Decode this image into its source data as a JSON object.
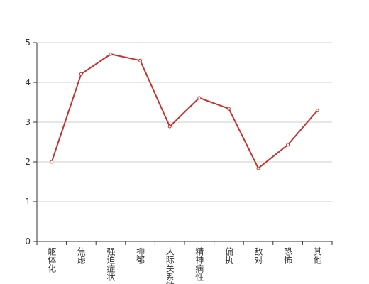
{
  "chart_data": {
    "type": "line",
    "categories": [
      "躯体化",
      "焦虑",
      "强迫症状",
      "抑郁",
      "人际关系敏感",
      "精神病性",
      "偏执",
      "敌对",
      "恐怖",
      "其他"
    ],
    "values": [
      2.0,
      4.21,
      4.71,
      4.55,
      2.89,
      3.61,
      3.34,
      1.84,
      2.43,
      3.29
    ],
    "color": "#c23531",
    "ylim": [
      0,
      5
    ],
    "yticks": [
      0,
      1,
      2,
      3,
      4,
      5
    ],
    "grid": true
  }
}
